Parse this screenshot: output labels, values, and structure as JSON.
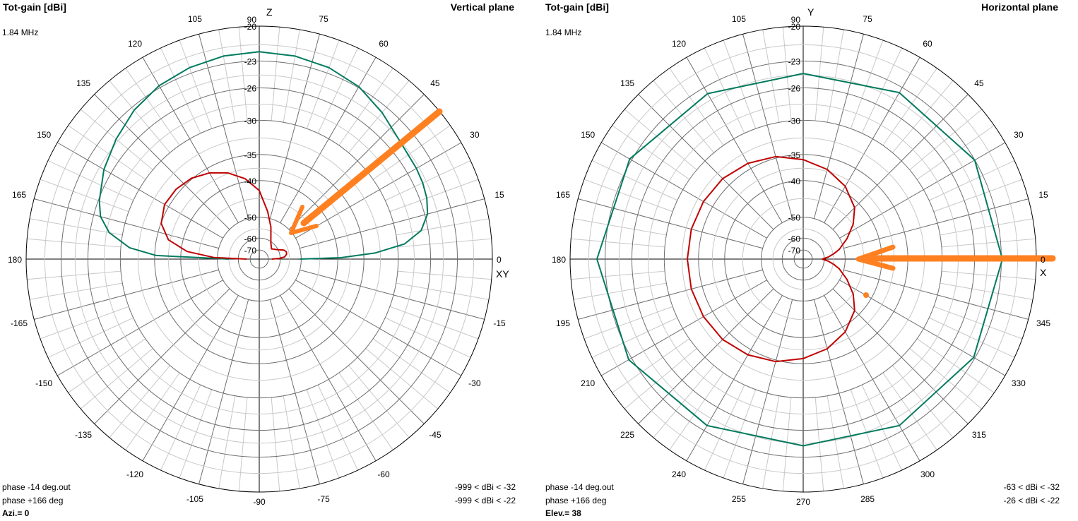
{
  "colors": {
    "series_red": "#c00000",
    "series_green": "#007a5e",
    "annotation": "#ff8020",
    "grid_minor": "#c8c8c8",
    "grid_major": "#6e6e6e",
    "outer_circle": "#000000"
  },
  "chart_data": [
    {
      "type": "polar-line",
      "panel": "left",
      "title": "Tot-gain [dBi]",
      "frequency": "1.84 MHz",
      "plane": "Vertical plane",
      "axis_top_label": "Z",
      "axis_right_label": "XY",
      "footer": "Azi.= 0",
      "angle_labels": [
        {
          "deg": 0,
          "text": "0"
        },
        {
          "deg": 15,
          "text": "15"
        },
        {
          "deg": 30,
          "text": "30"
        },
        {
          "deg": 45,
          "text": "45"
        },
        {
          "deg": 60,
          "text": "60"
        },
        {
          "deg": 75,
          "text": "75"
        },
        {
          "deg": 90,
          "text": "90"
        },
        {
          "deg": 105,
          "text": "105"
        },
        {
          "deg": 120,
          "text": "120"
        },
        {
          "deg": 135,
          "text": "135"
        },
        {
          "deg": 150,
          "text": "150"
        },
        {
          "deg": 165,
          "text": "165"
        },
        {
          "deg": 180,
          "text": "180"
        },
        {
          "deg": 195,
          "text": "-165"
        },
        {
          "deg": 210,
          "text": "-150"
        },
        {
          "deg": 225,
          "text": "-135"
        },
        {
          "deg": 240,
          "text": "-120"
        },
        {
          "deg": 255,
          "text": "-105"
        },
        {
          "deg": 270,
          "text": "-90"
        },
        {
          "deg": 285,
          "text": "-75"
        },
        {
          "deg": 300,
          "text": "-60"
        },
        {
          "deg": 315,
          "text": "-45"
        },
        {
          "deg": 330,
          "text": "-30"
        },
        {
          "deg": 345,
          "text": "-15"
        }
      ],
      "ring_labels": [
        {
          "text": "-20",
          "r": 1.0
        },
        {
          "text": "-23",
          "r": 0.85
        },
        {
          "text": "-26",
          "r": 0.735
        },
        {
          "text": "-30",
          "r": 0.596
        },
        {
          "text": "-35",
          "r": 0.449
        },
        {
          "text": "-40",
          "r": 0.337
        },
        {
          "text": "-50",
          "r": 0.18
        },
        {
          "text": "-60",
          "r": 0.09
        },
        {
          "text": "-70",
          "r": 0.039
        }
      ],
      "series": [
        {
          "name": "phase +166 deg",
          "legend_range": "-999 < dBi < -22",
          "color": "#007a5e",
          "points": [
            [
              0,
              -50
            ],
            [
              1,
              -38
            ],
            [
              3,
              -32
            ],
            [
              6,
              -28
            ],
            [
              10,
              -26
            ],
            [
              15,
              -25
            ],
            [
              20,
              -24.6
            ],
            [
              25,
              -24.4
            ],
            [
              30,
              -24.3
            ],
            [
              40,
              -24.1
            ],
            [
              50,
              -23.4
            ],
            [
              60,
              -22.7
            ],
            [
              70,
              -22.3
            ],
            [
              80,
              -22.1
            ],
            [
              90,
              -22
            ],
            [
              100,
              -22.1
            ],
            [
              110,
              -22.3
            ],
            [
              120,
              -22.6
            ],
            [
              130,
              -23.1
            ],
            [
              140,
              -23.8
            ],
            [
              150,
              -24.5
            ],
            [
              160,
              -25.4
            ],
            [
              165,
              -26
            ],
            [
              170,
              -27.3
            ],
            [
              175,
              -30
            ],
            [
              178,
              -34
            ],
            [
              180,
              -55
            ]
          ]
        },
        {
          "name": "phase -14 deg.out",
          "legend_range": "-999 < dBi < -32",
          "color": "#c00000",
          "points": [
            [
              0,
              -70
            ],
            [
              2,
              -62
            ],
            [
              5,
              -58
            ],
            [
              10,
              -56.5
            ],
            [
              15,
              -56.3
            ],
            [
              20,
              -57.5
            ],
            [
              28,
              -62
            ],
            [
              40,
              -66
            ],
            [
              55,
              -62
            ],
            [
              70,
              -53
            ],
            [
              80,
              -47
            ],
            [
              90,
              -41
            ],
            [
              100,
              -38
            ],
            [
              110,
              -36
            ],
            [
              120,
              -34.6
            ],
            [
              130,
              -33.6
            ],
            [
              140,
              -33.1
            ],
            [
              150,
              -33
            ],
            [
              160,
              -33.8
            ],
            [
              168,
              -35.8
            ],
            [
              174,
              -40
            ],
            [
              178,
              -48
            ],
            [
              180,
              -70
            ]
          ]
        }
      ]
    },
    {
      "type": "polar-line",
      "panel": "right",
      "title": "Tot-gain [dBi]",
      "frequency": "1.84 MHz",
      "plane": "Horizontal plane",
      "axis_top_label": "Y",
      "axis_right_label": "X",
      "footer": "Elev.= 38",
      "angle_labels": [
        {
          "deg": 0,
          "text": "0"
        },
        {
          "deg": 15,
          "text": "15"
        },
        {
          "deg": 30,
          "text": "30"
        },
        {
          "deg": 45,
          "text": "45"
        },
        {
          "deg": 60,
          "text": "60"
        },
        {
          "deg": 75,
          "text": "75"
        },
        {
          "deg": 90,
          "text": "90"
        },
        {
          "deg": 105,
          "text": "105"
        },
        {
          "deg": 120,
          "text": "120"
        },
        {
          "deg": 135,
          "text": "135"
        },
        {
          "deg": 150,
          "text": "150"
        },
        {
          "deg": 165,
          "text": "165"
        },
        {
          "deg": 180,
          "text": "180"
        },
        {
          "deg": 195,
          "text": "195"
        },
        {
          "deg": 210,
          "text": "210"
        },
        {
          "deg": 225,
          "text": "225"
        },
        {
          "deg": 240,
          "text": "240"
        },
        {
          "deg": 255,
          "text": "255"
        },
        {
          "deg": 270,
          "text": "270"
        },
        {
          "deg": 285,
          "text": "285"
        },
        {
          "deg": 300,
          "text": "300"
        },
        {
          "deg": 315,
          "text": "315"
        },
        {
          "deg": 330,
          "text": "330"
        },
        {
          "deg": 345,
          "text": "345"
        }
      ],
      "ring_labels": [
        {
          "text": "-20",
          "r": 1.0
        },
        {
          "text": "-23",
          "r": 0.85
        },
        {
          "text": "-26",
          "r": 0.735
        },
        {
          "text": "-30",
          "r": 0.596
        },
        {
          "text": "-35",
          "r": 0.449
        },
        {
          "text": "-40",
          "r": 0.337
        },
        {
          "text": "-50",
          "r": 0.18
        },
        {
          "text": "-60",
          "r": 0.09
        },
        {
          "text": "-70",
          "r": 0.039
        }
      ],
      "series": [
        {
          "name": "phase +166 deg",
          "legend_range": "-26 < dBi < -22",
          "color": "#007a5e",
          "points": [
            [
              0,
              -22.7
            ],
            [
              30,
              -22.8
            ],
            [
              60,
              -23.3
            ],
            [
              90,
              -23.9
            ],
            [
              120,
              -23.4
            ],
            [
              150,
              -22.6
            ],
            [
              180,
              -22.1
            ],
            [
              210,
              -22.5
            ],
            [
              240,
              -23.3
            ],
            [
              270,
              -23.8
            ],
            [
              300,
              -23.3
            ],
            [
              330,
              -22.9
            ],
            [
              360,
              -22.7
            ]
          ]
        },
        {
          "name": "phase -14 deg.out",
          "legend_range": "-63 < dBi < -32",
          "color": "#c00000",
          "points": [
            [
              0,
              -63
            ],
            [
              5,
              -58
            ],
            [
              10,
              -54.5
            ],
            [
              15,
              -51.5
            ],
            [
              25,
              -47
            ],
            [
              35,
              -43
            ],
            [
              45,
              -40
            ],
            [
              60,
              -37.5
            ],
            [
              75,
              -35.8
            ],
            [
              90,
              -34.6
            ],
            [
              105,
              -33.5
            ],
            [
              120,
              -32.8
            ],
            [
              135,
              -32.3
            ],
            [
              150,
              -32.1
            ],
            [
              165,
              -32
            ],
            [
              180,
              -32
            ],
            [
              195,
              -32
            ],
            [
              210,
              -32.1
            ],
            [
              225,
              -32.3
            ],
            [
              240,
              -32.8
            ],
            [
              255,
              -33.5
            ],
            [
              270,
              -34.6
            ],
            [
              285,
              -35.8
            ],
            [
              300,
              -37.5
            ],
            [
              315,
              -40
            ],
            [
              325,
              -43
            ],
            [
              335,
              -47
            ],
            [
              345,
              -51.5
            ],
            [
              350,
              -54.5
            ],
            [
              355,
              -58
            ],
            [
              360,
              -63
            ]
          ]
        }
      ]
    }
  ]
}
